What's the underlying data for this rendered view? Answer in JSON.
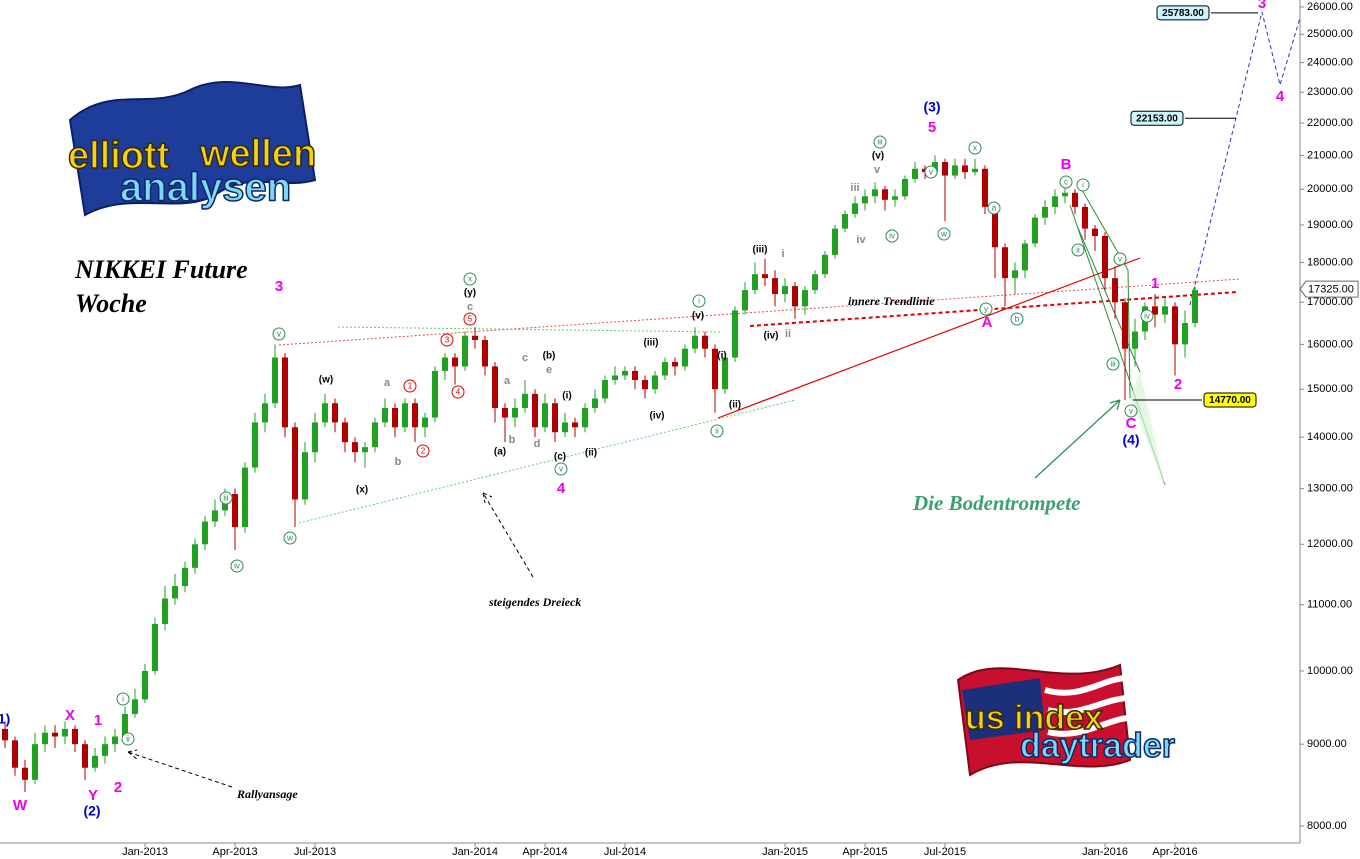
{
  "chart_data": {
    "type": "candlestick",
    "title": "NIKKEI Future",
    "subtitle": "Woche",
    "scale": "log",
    "grid": false,
    "up_color": "#22a022",
    "down_color": "#b00000",
    "ylim": [
      7807,
      26263
    ],
    "yticks": [
      {
        "value": 8000,
        "label": "8000.00"
      },
      {
        "value": 9000,
        "label": "9000.00"
      },
      {
        "value": 10000,
        "label": "10000.00"
      },
      {
        "value": 11000,
        "label": "11000.00"
      },
      {
        "value": 12000,
        "label": "12000.00"
      },
      {
        "value": 13000,
        "label": "13000.00"
      },
      {
        "value": 14000,
        "label": "14000.00"
      },
      {
        "value": 15000,
        "label": "15000.00"
      },
      {
        "value": 16000,
        "label": "16000.00"
      },
      {
        "value": 17000,
        "label": "17000.00"
      },
      {
        "value": 18000,
        "label": "18000.00"
      },
      {
        "value": 19000,
        "label": "19000.00"
      },
      {
        "value": 20000,
        "label": "20000.00"
      },
      {
        "value": 21000,
        "label": "21000.00"
      },
      {
        "value": 22000,
        "label": "22000.00"
      },
      {
        "value": 23000,
        "label": "23000.00"
      },
      {
        "value": 24000,
        "label": "24000.00"
      },
      {
        "value": 25000,
        "label": "25000.00"
      },
      {
        "value": 26000,
        "label": "26000.00"
      }
    ],
    "categories": [
      null,
      null,
      null,
      null,
      null,
      null,
      null,
      null,
      null,
      null,
      null,
      null,
      null,
      null,
      "Jan-2013",
      null,
      null,
      null,
      null,
      null,
      null,
      null,
      null,
      "Apr-2013",
      null,
      null,
      null,
      null,
      null,
      null,
      null,
      "Jul-2013",
      null,
      null,
      null,
      null,
      null,
      null,
      null,
      null,
      null,
      null,
      null,
      null,
      null,
      null,
      null,
      "Jan-2014",
      null,
      null,
      null,
      null,
      null,
      null,
      "Apr-2014",
      null,
      null,
      null,
      null,
      null,
      null,
      null,
      "Jul-2014",
      null,
      null,
      null,
      null,
      null,
      null,
      null,
      null,
      null,
      null,
      null,
      null,
      null,
      null,
      null,
      "Jan-2015",
      null,
      null,
      null,
      null,
      null,
      null,
      null,
      "Apr-2015",
      null,
      null,
      null,
      null,
      null,
      null,
      null,
      "Jul-2015",
      null,
      null,
      null,
      null,
      null,
      null,
      null,
      null,
      null,
      null,
      null,
      null,
      null,
      null,
      null,
      "Jan-2016",
      null,
      null,
      null,
      null,
      null,
      null,
      "Apr-2016",
      null,
      null
    ],
    "open": [
      9200,
      9050,
      8700,
      8550,
      9000,
      9150,
      9100,
      9200,
      9000,
      8700,
      8850,
      9000,
      9100,
      9400,
      9600,
      10000,
      10700,
      11100,
      11300,
      11600,
      12000,
      12400,
      12600,
      12900,
      12300,
      13400,
      14300,
      14700,
      15700,
      14200,
      12800,
      13700,
      14300,
      14700,
      14300,
      13900,
      13700,
      13800,
      14300,
      14600,
      14200,
      14700,
      14200,
      14400,
      15400,
      15700,
      15500,
      16200,
      16100,
      15500,
      14600,
      14400,
      14600,
      14900,
      14200,
      14700,
      14100,
      14300,
      14200,
      14600,
      14800,
      15200,
      15300,
      15400,
      15200,
      15000,
      15300,
      15600,
      15500,
      15900,
      16200,
      15900,
      15000,
      15700,
      16800,
      17300,
      17700,
      17600,
      17200,
      17400,
      16900,
      17300,
      17700,
      18200,
      18900,
      19300,
      19600,
      19800,
      20000,
      19700,
      19800,
      20300,
      20600,
      20500,
      20800,
      20400,
      20700,
      20500,
      20600,
      19500,
      18400,
      17600,
      17800,
      18500,
      19200,
      19500,
      19800,
      19900,
      19500,
      18900,
      18700,
      17600,
      17000,
      15900,
      16300,
      16900,
      16700,
      16900,
      16000,
      16500
    ],
    "high": [
      9300,
      9100,
      8800,
      9150,
      9250,
      9250,
      9300,
      9250,
      9050,
      8950,
      9100,
      9200,
      9500,
      9750,
      10100,
      10800,
      11300,
      11500,
      11700,
      12100,
      12500,
      12800,
      13000,
      13000,
      13500,
      14500,
      14900,
      16000,
      15800,
      14300,
      13900,
      14500,
      14900,
      14800,
      14400,
      14000,
      13900,
      14400,
      14800,
      14700,
      14800,
      14800,
      14500,
      15500,
      15800,
      15800,
      16300,
      16400,
      16200,
      15600,
      14700,
      14800,
      15200,
      15000,
      14900,
      14800,
      14500,
      14400,
      14700,
      15000,
      15300,
      15500,
      15500,
      15500,
      15300,
      15400,
      15700,
      15700,
      16000,
      16400,
      16300,
      16000,
      15800,
      16900,
      17500,
      18000,
      18100,
      17800,
      17600,
      17500,
      17400,
      17800,
      18300,
      19000,
      19400,
      19800,
      20000,
      20200,
      20100,
      20000,
      20400,
      20800,
      20700,
      21000,
      20900,
      20900,
      20900,
      20900,
      20700,
      19600,
      18500,
      18000,
      18600,
      19300,
      19700,
      20000,
      20100,
      20000,
      19600,
      19000,
      18800,
      17900,
      17100,
      16600,
      17000,
      17200,
      17100,
      17000,
      16800,
      17400
    ],
    "low": [
      8950,
      8600,
      8400,
      8500,
      8900,
      8950,
      9000,
      8900,
      8550,
      8650,
      8750,
      8900,
      9050,
      9350,
      9550,
      9950,
      10600,
      11000,
      11200,
      11500,
      11900,
      12300,
      12500,
      11900,
      12200,
      13300,
      14100,
      14600,
      14000,
      12300,
      12700,
      13500,
      14200,
      14100,
      13700,
      13500,
      13400,
      13700,
      14200,
      14000,
      14100,
      13900,
      14000,
      14300,
      15200,
      15100,
      15400,
      15900,
      15300,
      14300,
      13900,
      14200,
      14500,
      14000,
      14100,
      13900,
      14000,
      14000,
      14100,
      14500,
      14700,
      15100,
      15200,
      15000,
      14800,
      14900,
      15200,
      15300,
      15400,
      15800,
      15700,
      14500,
      14900,
      15600,
      16700,
      17200,
      17400,
      16900,
      17000,
      16600,
      16700,
      17200,
      17600,
      18100,
      18800,
      19200,
      19400,
      19600,
      19400,
      19500,
      19700,
      20200,
      20300,
      20400,
      19100,
      20300,
      20300,
      20400,
      19300,
      17600,
      16900,
      17200,
      17600,
      18400,
      19000,
      19300,
      19600,
      19300,
      18600,
      18300,
      17300,
      16600,
      14770,
      15500,
      16100,
      16400,
      16500,
      15300,
      15700,
      16400
    ],
    "close": [
      9050,
      8700,
      8550,
      9000,
      9150,
      9100,
      9200,
      9000,
      8700,
      8850,
      9000,
      9100,
      9400,
      9600,
      10000,
      10700,
      11100,
      11300,
      11600,
      12000,
      12400,
      12600,
      12900,
      12300,
      13400,
      14300,
      14700,
      15700,
      14200,
      12800,
      13700,
      14300,
      14700,
      14300,
      13900,
      13700,
      13800,
      14300,
      14600,
      14200,
      14700,
      14200,
      14400,
      15400,
      15700,
      15500,
      16200,
      16100,
      15500,
      14600,
      14400,
      14600,
      14900,
      14200,
      14700,
      14100,
      14300,
      14200,
      14600,
      14800,
      15200,
      15300,
      15400,
      15200,
      15000,
      15300,
      15600,
      15500,
      15900,
      16200,
      15900,
      15000,
      15700,
      16800,
      17300,
      17700,
      17600,
      17200,
      17400,
      16900,
      17300,
      17700,
      18200,
      18900,
      19300,
      19600,
      19800,
      20000,
      19700,
      19800,
      20300,
      20600,
      20500,
      20800,
      20400,
      20700,
      20500,
      20600,
      19500,
      18400,
      17600,
      17800,
      18500,
      19200,
      19500,
      19800,
      19900,
      19500,
      18900,
      18700,
      17600,
      17000,
      15900,
      16300,
      16900,
      16700,
      16900,
      16000,
      16500,
      17300
    ],
    "price_levels": [
      {
        "value": 25783,
        "label": "25783.00",
        "color": "#ccf5ff"
      },
      {
        "value": 22153,
        "label": "22153.00",
        "color": "#ccf5ff"
      },
      {
        "value": 14770,
        "label": "14770.00",
        "color": "#ffff00"
      }
    ],
    "last_price": {
      "value": 17325,
      "label": "17325.00"
    },
    "annotations": [
      "innere Trendlinie",
      "steigendes Dreieck",
      "Rallyansage",
      "Die Bodentrompete"
    ],
    "logo_top": [
      "elliott",
      "wellen",
      "analysen"
    ],
    "logo_bottom": [
      "us index",
      "daytrader"
    ],
    "wave_labels": [
      {
        "text": "3",
        "color": "#ee00ee"
      },
      {
        "text": "5",
        "color": "#ee00ee"
      },
      {
        "text": "4",
        "color": "#ee00ee"
      },
      {
        "text": "1",
        "color": "#ee00ee"
      },
      {
        "text": "2",
        "color": "#ee00ee"
      },
      {
        "text": "X",
        "color": "#ee00ee"
      },
      {
        "text": "Y",
        "color": "#ee00ee"
      },
      {
        "text": "W",
        "color": "#ee00ee"
      },
      {
        "text": "B",
        "color": "#ee00ee"
      },
      {
        "text": "A",
        "color": "#ee00ee"
      },
      {
        "text": "C",
        "color": "#ee00ee"
      },
      {
        "text": "1",
        "color": "#ee00ee"
      },
      {
        "text": "2",
        "color": "#ee00ee"
      },
      {
        "text": "3",
        "color": "#ee00ee"
      },
      {
        "text": "4",
        "color": "#ee00ee"
      },
      {
        "text": "(3)",
        "color": "#0000cc"
      },
      {
        "text": "(4)",
        "color": "#0000cc"
      },
      {
        "text": "(2)",
        "color": "#0000cc"
      },
      {
        "text": "1)",
        "color": "#0000cc"
      },
      {
        "text": "(y)",
        "color": "#000000"
      },
      {
        "text": "(w)",
        "color": "#000000"
      },
      {
        "text": "(x)",
        "color": "#000000"
      },
      {
        "text": "(b)",
        "color": "#000000"
      },
      {
        "text": "(a)",
        "color": "#000000"
      },
      {
        "text": "(c)",
        "color": "#000000"
      },
      {
        "text": "(i)",
        "color": "#000000"
      },
      {
        "text": "(ii)",
        "color": "#000000"
      },
      {
        "text": "(iii)",
        "color": "#000000"
      },
      {
        "text": "(iv)",
        "color": "#000000"
      },
      {
        "text": "(v)",
        "color": "#000000"
      },
      {
        "text": "(i)",
        "color": "#000000"
      },
      {
        "text": "(ii)",
        "color": "#000000"
      },
      {
        "text": "(iii)",
        "color": "#000000"
      },
      {
        "text": "(iv)",
        "color": "#000000"
      },
      {
        "text": "(v)",
        "color": "#000000"
      },
      {
        "text": "c",
        "color": "#888888"
      },
      {
        "text": "a",
        "color": "#888888"
      },
      {
        "text": "b",
        "color": "#888888"
      },
      {
        "text": "c",
        "color": "#888888"
      },
      {
        "text": "a",
        "color": "#888888"
      },
      {
        "text": "b",
        "color": "#888888"
      },
      {
        "text": "e",
        "color": "#888888"
      },
      {
        "text": "d",
        "color": "#888888"
      },
      {
        "text": "i",
        "color": "#888888"
      },
      {
        "text": "ii",
        "color": "#888888"
      },
      {
        "text": "iii",
        "color": "#888888"
      },
      {
        "text": "iv",
        "color": "#888888"
      },
      {
        "text": "v",
        "color": "#888888"
      },
      {
        "text": "5",
        "color": "#e00000",
        "circled": true
      },
      {
        "text": "3",
        "color": "#e00000",
        "circled": true
      },
      {
        "text": "4",
        "color": "#e00000",
        "circled": true
      },
      {
        "text": "1",
        "color": "#e00000",
        "circled": true
      },
      {
        "text": "2",
        "color": "#e00000",
        "circled": true
      },
      {
        "text": "x",
        "color": "#2e8b57",
        "circled": true
      },
      {
        "text": "v",
        "color": "#2e8b57",
        "circled": true
      },
      {
        "text": "w",
        "color": "#2e8b57",
        "circled": true
      },
      {
        "text": "iii",
        "color": "#2e8b57",
        "circled": true
      },
      {
        "text": "iv",
        "color": "#2e8b57",
        "circled": true
      },
      {
        "text": "i",
        "color": "#2e8b57",
        "circled": true
      },
      {
        "text": "ii",
        "color": "#2e8b57",
        "circled": true
      },
      {
        "text": "v",
        "color": "#2e8b57",
        "circled": true
      },
      {
        "text": "i",
        "color": "#2e8b57",
        "circled": true
      },
      {
        "text": "ii",
        "color": "#2e8b57",
        "circled": true
      },
      {
        "text": "iii",
        "color": "#2e8b57",
        "circled": true
      },
      {
        "text": "iv",
        "color": "#2e8b57",
        "circled": true
      },
      {
        "text": "v",
        "color": "#2e8b57",
        "circled": true
      },
      {
        "text": "w",
        "color": "#2e8b57",
        "circled": true
      },
      {
        "text": "x",
        "color": "#2e8b57",
        "circled": true
      },
      {
        "text": "y",
        "color": "#2e8b57",
        "circled": true
      },
      {
        "text": "a",
        "color": "#2e8b57",
        "circled": true
      },
      {
        "text": "b",
        "color": "#2e8b57",
        "circled": true
      },
      {
        "text": "c",
        "color": "#2e8b57",
        "circled": true
      },
      {
        "text": "i",
        "color": "#2e8b57",
        "circled": true
      },
      {
        "text": "ii",
        "color": "#2e8b57",
        "circled": true
      },
      {
        "text": "iii",
        "color": "#2e8b57",
        "circled": true
      },
      {
        "text": "iv",
        "color": "#2e8b57",
        "circled": true
      },
      {
        "text": "v",
        "color": "#2e8b57",
        "circled": true
      },
      {
        "text": "v",
        "color": "#2e8b57",
        "circled": true
      }
    ]
  }
}
